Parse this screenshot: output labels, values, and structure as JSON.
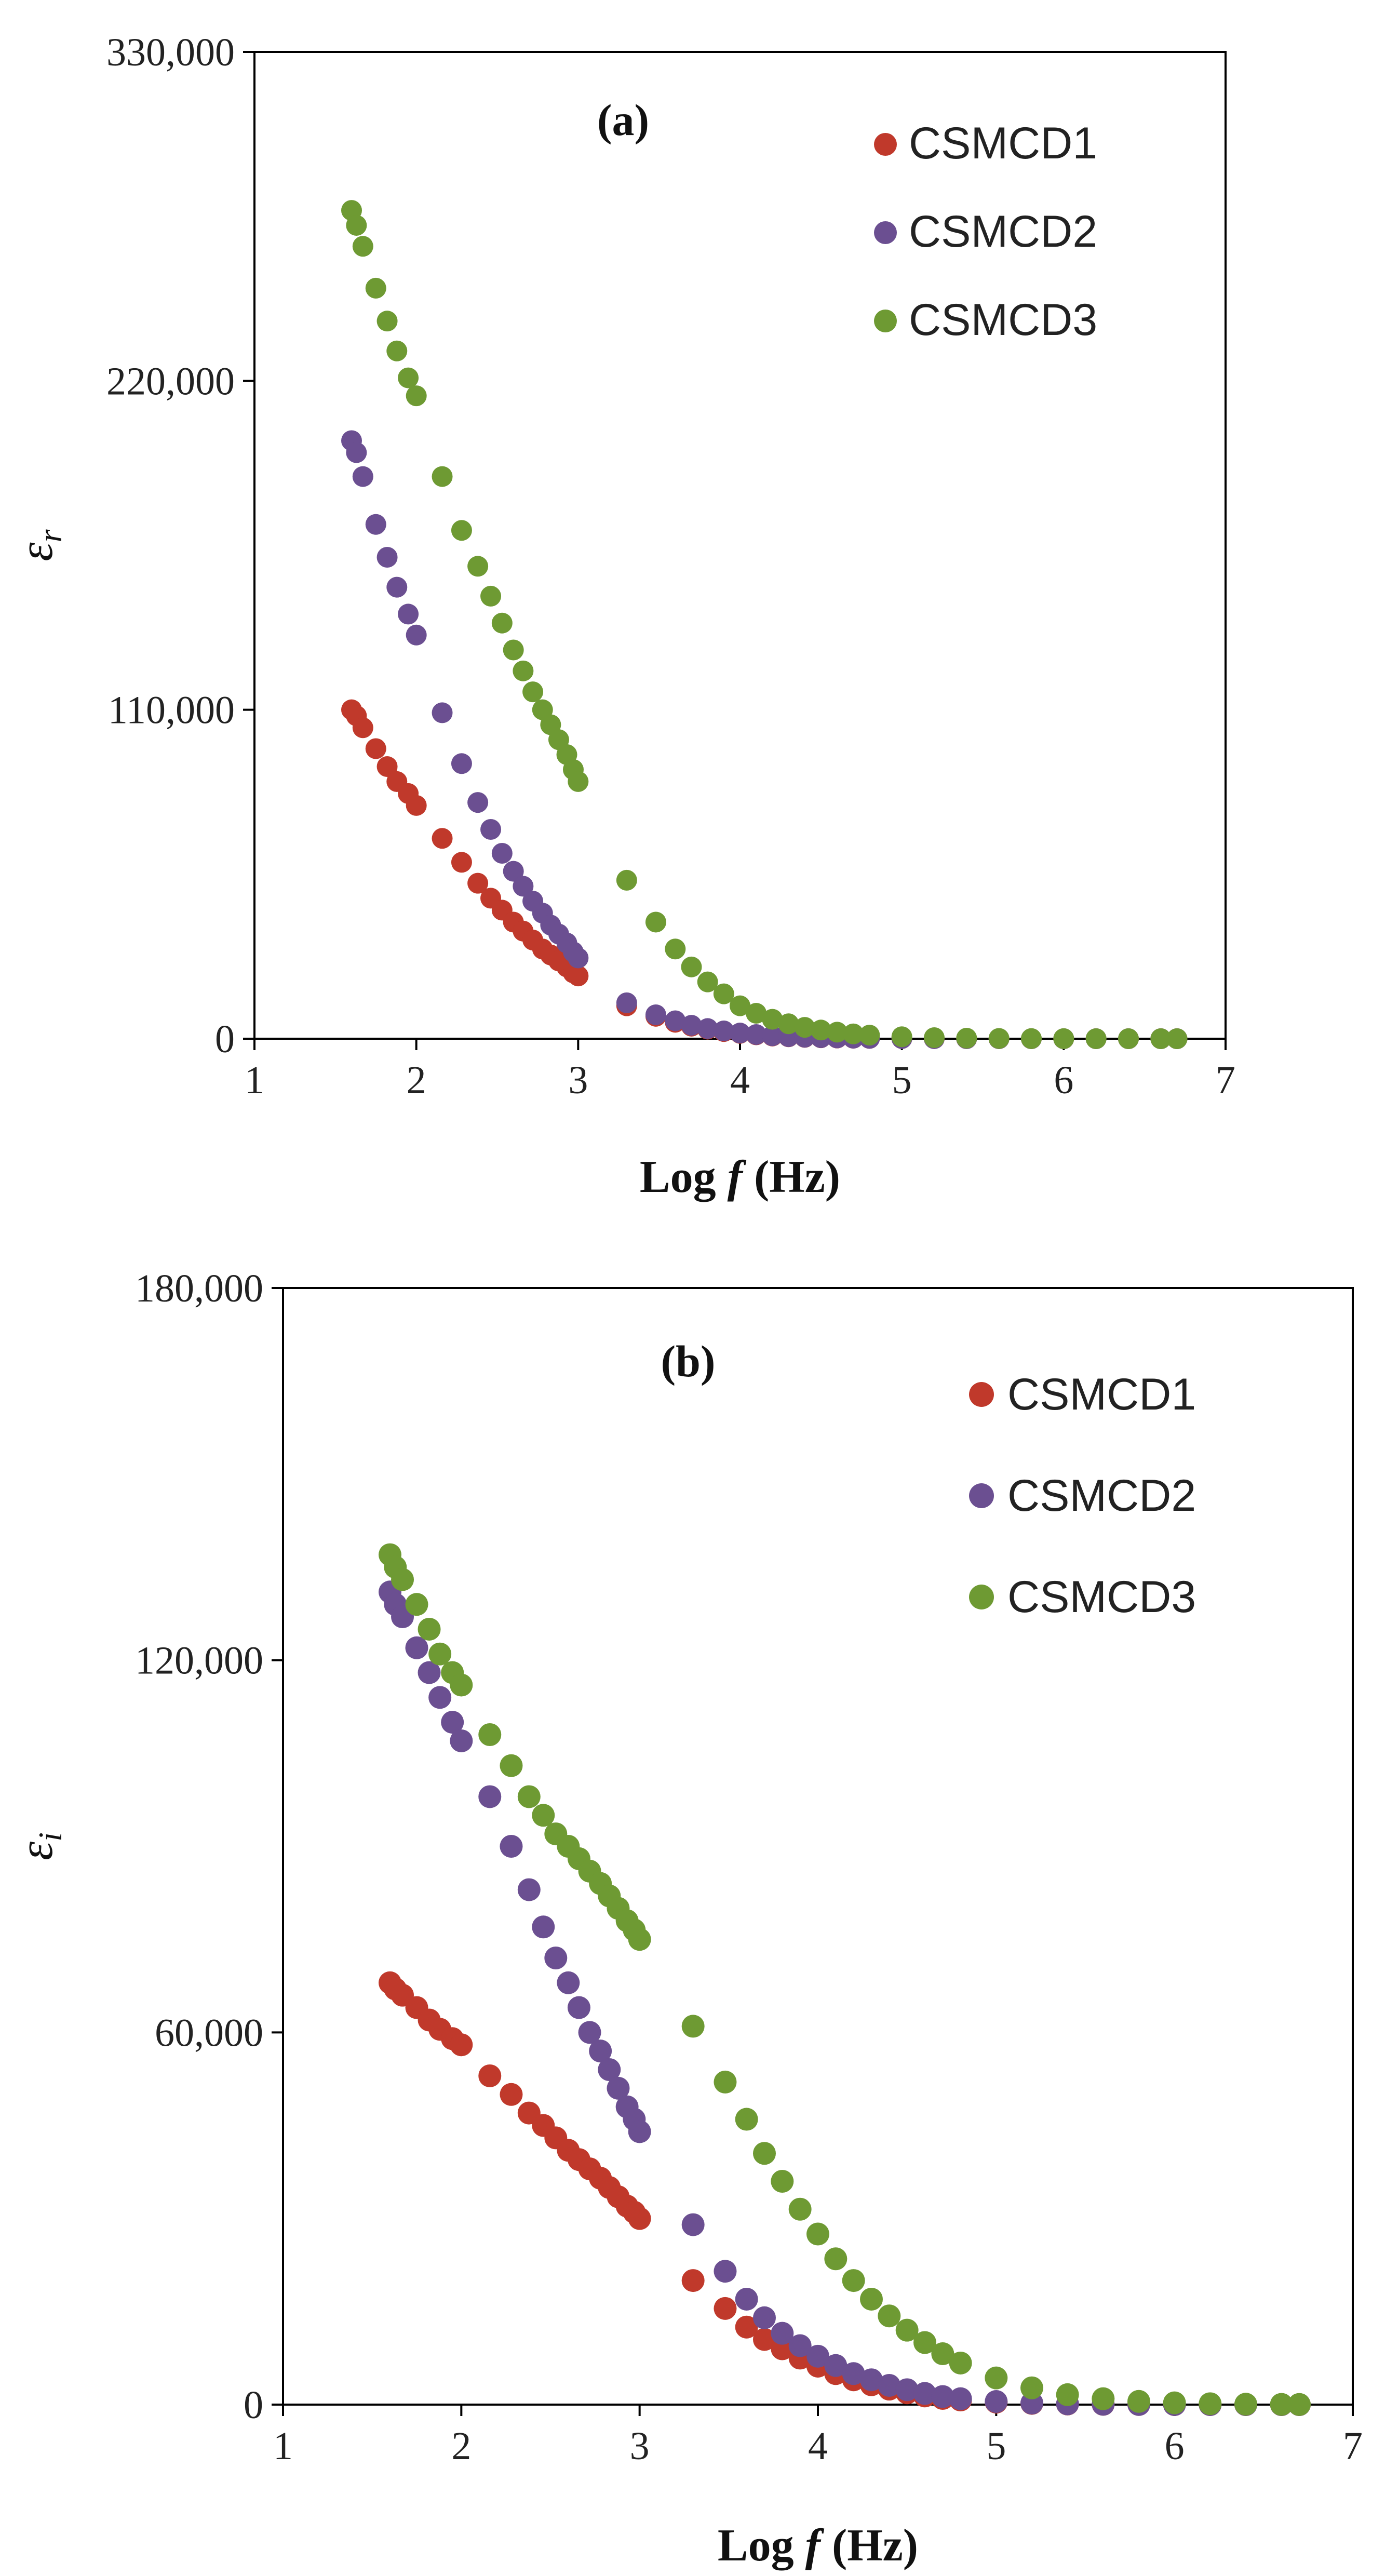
{
  "chart_data": [
    {
      "type": "scatter",
      "panel_label": "(a)",
      "title": "",
      "xlabel": "Log f (Hz)",
      "xlabel_parts": [
        "Log ",
        "f",
        " (Hz)"
      ],
      "ylabel_symbol": "ε",
      "ylabel_sub": "r",
      "xlim": [
        1,
        7
      ],
      "ylim": [
        0,
        330000
      ],
      "xticks": [
        1,
        2,
        3,
        4,
        5,
        6,
        7
      ],
      "xtick_labels": [
        "1",
        "2",
        "3",
        "4",
        "5",
        "6",
        "7"
      ],
      "yticks": [
        0,
        110000,
        220000,
        330000
      ],
      "ytick_labels": [
        "0",
        "110,000",
        "220,000",
        "330,000"
      ],
      "legend_position": "top-right",
      "series": [
        {
          "name": "CSMCD1",
          "color": "#c0392b",
          "x": [
            1.6,
            1.63,
            1.67,
            1.75,
            1.82,
            1.88,
            1.95,
            2.0,
            2.16,
            2.28,
            2.38,
            2.46,
            2.53,
            2.6,
            2.66,
            2.72,
            2.78,
            2.83,
            2.88,
            2.93,
            2.97,
            3.0,
            3.3,
            3.48,
            3.6,
            3.7,
            3.8,
            3.9,
            4.0,
            4.1,
            4.2,
            4.3,
            4.4,
            4.5,
            4.6,
            4.7,
            4.8,
            5.0,
            5.2,
            5.4,
            5.6,
            5.8,
            6.0,
            6.2,
            6.4,
            6.6,
            6.7
          ],
          "values": [
            110000,
            108000,
            104000,
            97000,
            91000,
            86000,
            82000,
            78000,
            67000,
            59000,
            52000,
            47000,
            43000,
            39000,
            36000,
            33000,
            30000,
            28000,
            26000,
            24000,
            22000,
            21000,
            11000,
            7500,
            5500,
            4200,
            3200,
            2400,
            1800,
            1300,
            900,
            650,
            450,
            320,
            230,
            160,
            110,
            60,
            30,
            15,
            8,
            4,
            2,
            1,
            0,
            0,
            0
          ]
        },
        {
          "name": "CSMCD2",
          "color": "#6b4f91",
          "x": [
            1.6,
            1.63,
            1.67,
            1.75,
            1.82,
            1.88,
            1.95,
            2.0,
            2.16,
            2.28,
            2.38,
            2.46,
            2.53,
            2.6,
            2.66,
            2.72,
            2.78,
            2.83,
            2.88,
            2.93,
            2.97,
            3.0,
            3.3,
            3.48,
            3.6,
            3.7,
            3.8,
            3.9,
            4.0,
            4.1,
            4.2,
            4.3,
            4.4,
            4.5,
            4.6,
            4.7,
            4.8,
            5.0,
            5.2,
            5.4,
            5.6,
            5.8,
            6.0,
            6.2,
            6.4,
            6.6,
            6.7
          ],
          "values": [
            200000,
            196000,
            188000,
            172000,
            161000,
            151000,
            142000,
            135000,
            109000,
            92000,
            79000,
            70000,
            62000,
            56000,
            51000,
            46000,
            42000,
            38000,
            35000,
            32000,
            29000,
            27000,
            12000,
            8000,
            6000,
            4500,
            3400,
            2600,
            1900,
            1400,
            1000,
            700,
            500,
            350,
            250,
            170,
            120,
            65,
            35,
            18,
            9,
            5,
            2,
            1,
            0,
            0,
            0
          ]
        },
        {
          "name": "CSMCD3",
          "color": "#6e9a33",
          "x": [
            1.6,
            1.63,
            1.67,
            1.75,
            1.82,
            1.88,
            1.95,
            2.0,
            2.16,
            2.28,
            2.38,
            2.46,
            2.53,
            2.6,
            2.66,
            2.72,
            2.78,
            2.83,
            2.88,
            2.93,
            2.97,
            3.0,
            3.3,
            3.48,
            3.6,
            3.7,
            3.8,
            3.9,
            4.0,
            4.1,
            4.2,
            4.3,
            4.4,
            4.5,
            4.6,
            4.7,
            4.8,
            5.0,
            5.2,
            5.4,
            5.6,
            5.8,
            6.0,
            6.2,
            6.4,
            6.6,
            6.7
          ],
          "values": [
            277000,
            272000,
            265000,
            251000,
            240000,
            230000,
            221000,
            215000,
            188000,
            170000,
            158000,
            148000,
            139000,
            130000,
            123000,
            116000,
            110000,
            105000,
            100000,
            95000,
            90000,
            86000,
            53000,
            39000,
            30000,
            24000,
            19000,
            15000,
            11000,
            8500,
            6500,
            5000,
            3800,
            2900,
            2200,
            1600,
            1200,
            650,
            350,
            180,
            90,
            45,
            20,
            8,
            3,
            1,
            0
          ]
        }
      ]
    },
    {
      "type": "scatter",
      "panel_label": "(b)",
      "title": "",
      "xlabel": "Log f (Hz)",
      "xlabel_parts": [
        "Log ",
        "f",
        " (Hz)"
      ],
      "ylabel_symbol": "ε",
      "ylabel_sub": "i",
      "xlim": [
        1,
        7
      ],
      "ylim": [
        0,
        180000
      ],
      "xticks": [
        1,
        2,
        3,
        4,
        5,
        6,
        7
      ],
      "xtick_labels": [
        "1",
        "2",
        "3",
        "4",
        "5",
        "6",
        "7"
      ],
      "yticks": [
        0,
        60000,
        120000,
        180000
      ],
      "ytick_labels": [
        "0",
        "60,000",
        "120,000",
        "180,000"
      ],
      "legend_position": "top-right",
      "series": [
        {
          "name": "CSMCD1",
          "color": "#c0392b",
          "x": [
            1.6,
            1.63,
            1.67,
            1.75,
            1.82,
            1.88,
            1.95,
            2.0,
            2.16,
            2.28,
            2.38,
            2.46,
            2.53,
            2.6,
            2.66,
            2.72,
            2.78,
            2.83,
            2.88,
            2.93,
            2.97,
            3.0,
            3.3,
            3.48,
            3.6,
            3.7,
            3.8,
            3.9,
            4.0,
            4.1,
            4.2,
            4.3,
            4.4,
            4.5,
            4.6,
            4.7,
            4.8,
            5.0,
            5.2,
            5.4,
            5.6,
            5.8,
            6.0,
            6.2,
            6.4,
            6.6,
            6.7
          ],
          "values": [
            68000,
            67000,
            66000,
            64000,
            62000,
            60500,
            59000,
            58000,
            53000,
            50000,
            47000,
            45000,
            43000,
            41000,
            39500,
            38000,
            36500,
            35000,
            33500,
            32000,
            31000,
            30000,
            20000,
            15500,
            12500,
            10500,
            9000,
            7500,
            6200,
            5000,
            4000,
            3200,
            2500,
            1900,
            1400,
            1000,
            750,
            400,
            200,
            100,
            50,
            25,
            10,
            4,
            1,
            0,
            0
          ]
        },
        {
          "name": "CSMCD2",
          "color": "#6b4f91",
          "x": [
            1.6,
            1.63,
            1.67,
            1.75,
            1.82,
            1.88,
            1.95,
            2.0,
            2.16,
            2.28,
            2.38,
            2.46,
            2.53,
            2.6,
            2.66,
            2.72,
            2.78,
            2.83,
            2.88,
            2.93,
            2.97,
            3.0,
            3.3,
            3.48,
            3.6,
            3.7,
            3.8,
            3.9,
            4.0,
            4.1,
            4.2,
            4.3,
            4.4,
            4.5,
            4.6,
            4.7,
            4.8,
            5.0,
            5.2,
            5.4,
            5.6,
            5.8,
            6.0,
            6.2,
            6.4,
            6.6,
            6.7
          ],
          "values": [
            131000,
            129000,
            127000,
            122000,
            118000,
            114000,
            110000,
            107000,
            98000,
            90000,
            83000,
            77000,
            72000,
            68000,
            64000,
            60000,
            57000,
            54000,
            51000,
            48000,
            46000,
            44000,
            29000,
            21500,
            17000,
            14000,
            11500,
            9500,
            7800,
            6300,
            5000,
            4000,
            3100,
            2400,
            1800,
            1300,
            950,
            500,
            250,
            120,
            60,
            30,
            12,
            5,
            2,
            0,
            0
          ]
        },
        {
          "name": "CSMCD3",
          "color": "#6e9a33",
          "x": [
            1.6,
            1.63,
            1.67,
            1.75,
            1.82,
            1.88,
            1.95,
            2.0,
            2.16,
            2.28,
            2.38,
            2.46,
            2.53,
            2.6,
            2.66,
            2.72,
            2.78,
            2.83,
            2.88,
            2.93,
            2.97,
            3.0,
            3.3,
            3.48,
            3.6,
            3.7,
            3.8,
            3.9,
            4.0,
            4.1,
            4.2,
            4.3,
            4.4,
            4.5,
            4.6,
            4.7,
            4.8,
            5.0,
            5.2,
            5.4,
            5.6,
            5.8,
            6.0,
            6.2,
            6.4,
            6.6,
            6.7
          ],
          "values": [
            137000,
            135000,
            133000,
            129000,
            125000,
            121000,
            118000,
            116000,
            108000,
            103000,
            98000,
            95000,
            92000,
            90000,
            88000,
            86000,
            84000,
            82000,
            80000,
            78000,
            76500,
            75000,
            61000,
            52000,
            46000,
            40500,
            36000,
            31500,
            27500,
            23500,
            20000,
            17000,
            14300,
            12000,
            10000,
            8200,
            6700,
            4300,
            2700,
            1600,
            950,
            520,
            280,
            140,
            70,
            35,
            20
          ]
        }
      ]
    }
  ]
}
